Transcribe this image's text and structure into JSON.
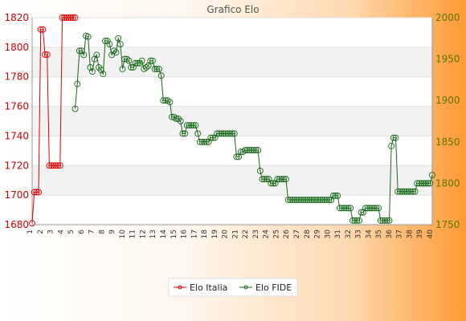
{
  "chart_data": {
    "type": "line",
    "title": "Grafico Elo",
    "xlabel": "",
    "ylabel": "",
    "left_axis": {
      "ylim": [
        1680,
        1820
      ],
      "ticks": [
        1680,
        1700,
        1720,
        1740,
        1760,
        1780,
        1800,
        1820
      ],
      "color": "#cc0000"
    },
    "right_axis": {
      "ylim": [
        1750,
        2000
      ],
      "ticks": [
        1750,
        1800,
        1850,
        1900,
        1950,
        2000
      ],
      "color": "#557700"
    },
    "grid": true,
    "legend_position": "bottom",
    "series": [
      {
        "name": "Elo Italia",
        "axis": "left",
        "color": "#dd0000",
        "values": [
          1681,
          1702,
          1702,
          1702,
          1812,
          1812,
          1795,
          1795,
          1720,
          1720,
          1720,
          1720,
          1720,
          1720,
          1820,
          1820,
          1820,
          1820,
          1820,
          1820,
          1820
        ]
      },
      {
        "name": "Elo FIDE",
        "axis": "right",
        "color": "#1a6a1a",
        "start_index": 20,
        "values": [
          1890,
          1920,
          1960,
          1960,
          1955,
          1978,
          1977,
          1940,
          1935,
          1950,
          1955,
          1940,
          1937,
          1932,
          1972,
          1972,
          1968,
          1955,
          1960,
          1958,
          1975,
          1968,
          1938,
          1950,
          1950,
          1948,
          1940,
          1940,
          1945,
          1945,
          1945,
          1948,
          1938,
          1940,
          1942,
          1948,
          1948,
          1938,
          1938,
          1938,
          1930,
          1900,
          1900,
          1900,
          1898,
          1880,
          1880,
          1878,
          1878,
          1875,
          1860,
          1860,
          1870,
          1870,
          1870,
          1870,
          1870,
          1860,
          1850,
          1850,
          1850,
          1850,
          1850,
          1855,
          1855,
          1855,
          1860,
          1860,
          1860,
          1860,
          1860,
          1860,
          1860,
          1860,
          1860,
          1832,
          1832,
          1838,
          1838,
          1840,
          1840,
          1840,
          1840,
          1840,
          1840,
          1840,
          1815,
          1805,
          1805,
          1805,
          1805,
          1800,
          1800,
          1800,
          1805,
          1805,
          1805,
          1805,
          1805,
          1780,
          1780,
          1780,
          1780,
          1780,
          1780,
          1780,
          1780,
          1780,
          1780,
          1780,
          1780,
          1780,
          1780,
          1780,
          1780,
          1780,
          1780,
          1780,
          1780,
          1780,
          1785,
          1785,
          1785,
          1770,
          1770,
          1770,
          1770,
          1770,
          1770,
          1755,
          1755,
          1755,
          1755,
          1765,
          1765,
          1770,
          1770,
          1770,
          1770,
          1770,
          1770,
          1770,
          1755,
          1755,
          1755,
          1755,
          1755,
          1845,
          1855,
          1855,
          1790,
          1790,
          1790,
          1790,
          1790,
          1790,
          1790,
          1790,
          1790,
          1800,
          1800,
          1800,
          1800,
          1800,
          1800,
          1800,
          1810
        ]
      }
    ],
    "x_tick_labels": [
      "1",
      "2",
      "3",
      "4",
      "5",
      "6",
      "7",
      "8",
      "9",
      "10",
      "11",
      "12",
      "13",
      "14",
      "15",
      "16",
      "17",
      "18",
      "19",
      "20",
      "21",
      "22",
      "23",
      "24",
      "25",
      "26",
      "27",
      "28",
      "29",
      "30",
      "31",
      "32",
      "33",
      "34",
      "35",
      "36",
      "37",
      "38",
      "39",
      "40"
    ]
  }
}
